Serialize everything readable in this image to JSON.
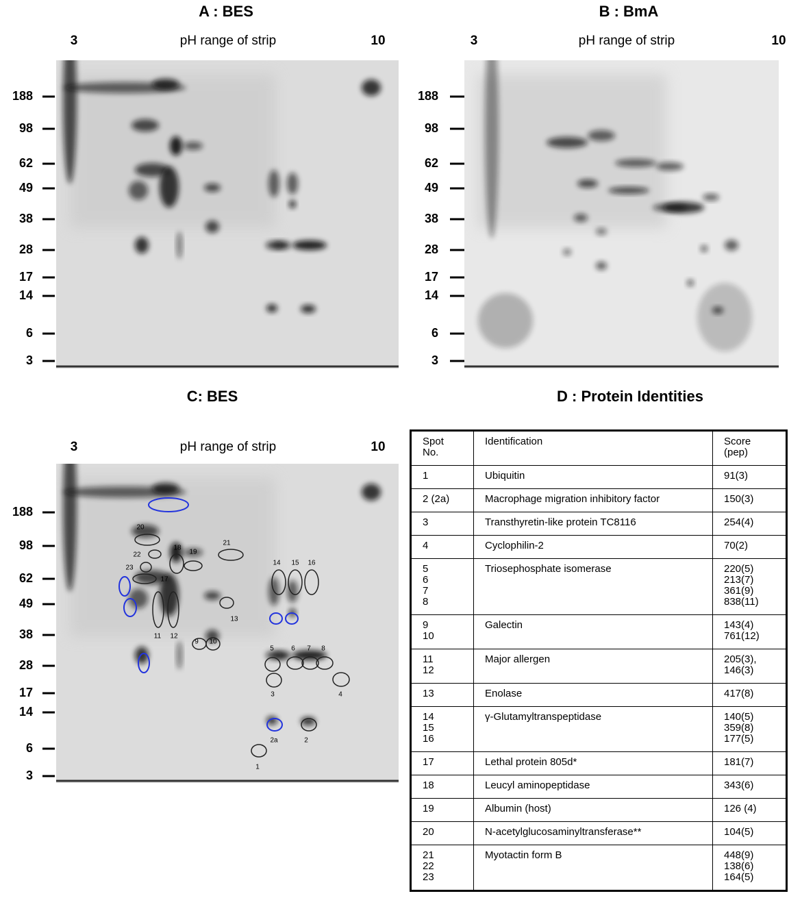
{
  "panels": [
    {
      "title": "A : BES",
      "ph_low": "3",
      "ph_label": "pH range of strip",
      "ph_high": "10",
      "mw_markers": [
        "188",
        "98",
        "62",
        "49",
        "38",
        "28",
        "17",
        "14",
        "6",
        "3"
      ]
    },
    {
      "title": "B : BmA",
      "ph_low": "3",
      "ph_label": "pH range of strip",
      "ph_high": "10",
      "mw_markers": [
        "188",
        "98",
        "62",
        "49",
        "38",
        "28",
        "17",
        "14",
        "6",
        "3"
      ]
    },
    {
      "title": "C: BES",
      "ph_low": "3",
      "ph_label": "pH range of strip",
      "ph_high": "10",
      "mw_markers": [
        "188",
        "98",
        "62",
        "49",
        "38",
        "28",
        "17",
        "14",
        "6",
        "3"
      ],
      "spot_labels": [
        "20",
        "22",
        "18",
        "19",
        "21",
        "23",
        "17",
        "14",
        "15",
        "16",
        "13",
        "11",
        "12",
        "9",
        "10",
        "5",
        "6",
        "7",
        "8",
        "3",
        "4",
        "2a",
        "2",
        "1"
      ]
    }
  ],
  "table": {
    "title": "D : Protein Identities",
    "header": [
      [
        "Spot",
        "No."
      ],
      [
        "Identification"
      ],
      [
        "Score",
        "(pep)"
      ]
    ],
    "rows": [
      [
        [
          "1"
        ],
        [
          "Ubiquitin"
        ],
        [
          "91(3)"
        ]
      ],
      [
        [
          "2 (2a)"
        ],
        [
          "Macrophage migration inhibitory factor"
        ],
        [
          "150(3)"
        ]
      ],
      [
        [
          "3"
        ],
        [
          "Transthyretin-like protein TC8116"
        ],
        [
          "254(4)"
        ]
      ],
      [
        [
          "4"
        ],
        [
          "Cyclophilin-2"
        ],
        [
          "70(2)"
        ]
      ],
      [
        [
          "5",
          "6",
          "7",
          "8"
        ],
        [
          "Triosephosphate isomerase"
        ],
        [
          "220(5)",
          "213(7)",
          "361(9)",
          "838(11)"
        ]
      ],
      [
        [
          "9",
          "10"
        ],
        [
          "Galectin"
        ],
        [
          "143(4)",
          "761(12)"
        ]
      ],
      [
        [
          "11",
          "12"
        ],
        [
          "Major allergen"
        ],
        [
          "205(3),",
          "146(3)"
        ]
      ],
      [
        [
          "13"
        ],
        [
          "Enolase"
        ],
        [
          "417(8)"
        ]
      ],
      [
        [
          "14",
          "15",
          "16"
        ],
        [
          "γ-Glutamyltranspeptidase"
        ],
        [
          "140(5)",
          "359(8)",
          "177(5)"
        ]
      ],
      [
        [
          "17"
        ],
        [
          "Lethal protein 805d*"
        ],
        [
          "181(7)"
        ]
      ],
      [
        [
          "18"
        ],
        [
          "Leucyl aminopeptidase"
        ],
        [
          "343(6)"
        ]
      ],
      [
        [
          "19"
        ],
        [
          "Albumin (host)"
        ],
        [
          "126 (4)"
        ]
      ],
      [
        [
          "20"
        ],
        [
          "N-acetylglucosaminyltransferase**"
        ],
        [
          "104(5)"
        ]
      ],
      [
        [
          "21",
          "22",
          "23"
        ],
        [
          "Myotactin form B"
        ],
        [
          "448(9)",
          "138(6)",
          "164(5)"
        ]
      ]
    ]
  }
}
